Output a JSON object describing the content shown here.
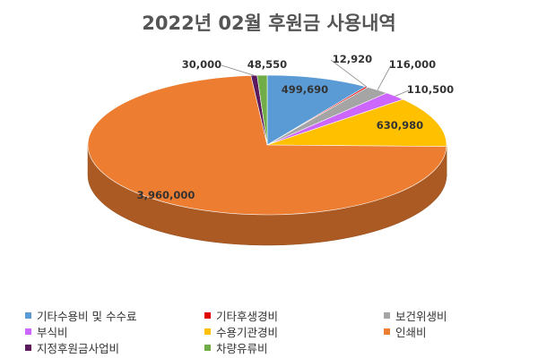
{
  "chart_data": {
    "type": "pie",
    "title": "2022년 02월 후원금 사용내역",
    "series": [
      {
        "categories": [
          "기타수용비 및 수수료",
          "기타후생경비",
          "보건위생비",
          "부식비",
          "수용기관경비",
          "인쇄비",
          "지정후원금사업비",
          "차량유류비"
        ],
        "values": [
          499690,
          12920,
          116000,
          110500,
          630980,
          3960000,
          30000,
          48550
        ],
        "value_labels": [
          "499,690",
          "12,920",
          "116,000",
          "110,500",
          "630,980",
          "3,960,000",
          "30,000",
          "48,550"
        ]
      }
    ],
    "colors": [
      "#5b9bd5",
      "#e00000",
      "#a5a5a5",
      "#cc66ff",
      "#ffc000",
      "#ed7d31",
      "#5a1a5c",
      "#70ad47"
    ],
    "style": "3d-pie",
    "legend_position": "bottom"
  }
}
